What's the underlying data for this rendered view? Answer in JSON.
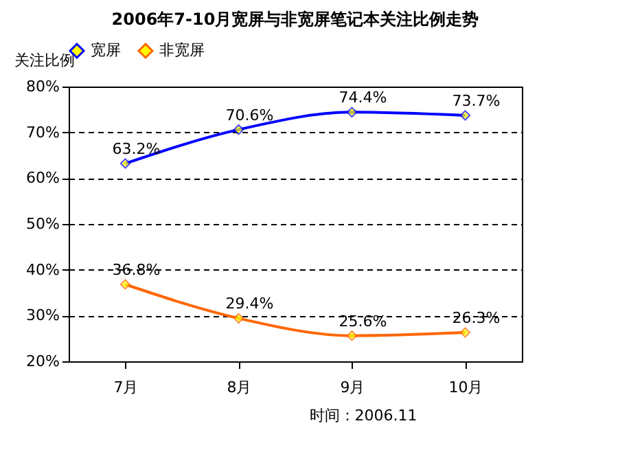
{
  "chart_data": {
    "type": "line",
    "title": "2006年7-10月宽屏与非宽屏笔记本关注比例走势",
    "ylabel": "关注比例",
    "categories": [
      "7月",
      "8月",
      "9月",
      "10月"
    ],
    "series": [
      {
        "name": "宽屏",
        "color": "#0000ff",
        "values": [
          63.2,
          70.6,
          74.4,
          73.7
        ],
        "value_labels": [
          "63.2%",
          "70.6%",
          "74.4%",
          "73.7%"
        ]
      },
      {
        "name": "非宽屏",
        "color": "#ff6600",
        "values": [
          36.8,
          29.4,
          25.6,
          26.3
        ],
        "value_labels": [
          "36.8%",
          "29.4%",
          "25.6%",
          "26.3%"
        ]
      }
    ],
    "ylim": [
      20,
      80
    ],
    "yticks": [
      {
        "value": 20,
        "label": "20%"
      },
      {
        "value": 30,
        "label": "30%"
      },
      {
        "value": 40,
        "label": "40%"
      },
      {
        "value": 50,
        "label": "50%"
      },
      {
        "value": 60,
        "label": "60%"
      },
      {
        "value": 70,
        "label": "70%"
      },
      {
        "value": 80,
        "label": "80%"
      }
    ],
    "grid": "y",
    "legend": "top",
    "marker": "diamond",
    "line_style": "solid",
    "annotations": [
      "时间：2006.11"
    ]
  }
}
